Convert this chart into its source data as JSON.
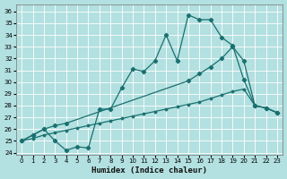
{
  "xlabel": "Humidex (Indice chaleur)",
  "bg_color": "#b3e0e0",
  "grid_color": "#ffffff",
  "line_color": "#1a7070",
  "xlim": [
    -0.5,
    23.5
  ],
  "ylim": [
    23.8,
    36.6
  ],
  "yticks": [
    24,
    25,
    26,
    27,
    28,
    29,
    30,
    31,
    32,
    33,
    34,
    35,
    36
  ],
  "xticks": [
    0,
    1,
    2,
    3,
    4,
    5,
    6,
    7,
    8,
    9,
    10,
    11,
    12,
    13,
    14,
    15,
    16,
    17,
    18,
    19,
    20,
    21,
    22,
    23
  ],
  "line1_x": [
    0,
    1,
    2,
    3,
    4,
    5,
    6,
    7,
    8,
    9,
    10,
    11,
    12,
    13,
    14,
    15,
    16,
    17,
    18,
    19,
    20,
    21,
    22,
    23
  ],
  "line1_y": [
    25.0,
    25.5,
    26.0,
    25.0,
    24.2,
    24.5,
    24.4,
    27.7,
    27.7,
    29.5,
    31.1,
    30.9,
    31.8,
    34.0,
    31.8,
    35.7,
    35.3,
    35.3,
    33.8,
    33.1,
    30.2,
    28.0,
    27.8,
    27.4
  ],
  "line2_x": [
    0,
    1,
    2,
    3,
    4,
    15,
    16,
    17,
    18,
    19,
    20,
    21,
    22,
    23
  ],
  "line2_y": [
    25.0,
    25.5,
    26.0,
    26.3,
    26.5,
    30.1,
    30.7,
    31.3,
    32.0,
    33.0,
    31.8,
    28.0,
    27.8,
    27.4
  ],
  "line3_x": [
    0,
    1,
    2,
    3,
    4,
    5,
    6,
    7,
    8,
    9,
    10,
    11,
    12,
    13,
    14,
    15,
    16,
    17,
    18,
    19,
    20,
    21,
    22,
    23
  ],
  "line3_y": [
    25.0,
    25.2,
    25.5,
    25.7,
    25.9,
    26.1,
    26.3,
    26.5,
    26.7,
    26.9,
    27.1,
    27.3,
    27.5,
    27.7,
    27.9,
    28.1,
    28.3,
    28.6,
    28.9,
    29.2,
    29.4,
    28.0,
    27.8,
    27.4
  ]
}
